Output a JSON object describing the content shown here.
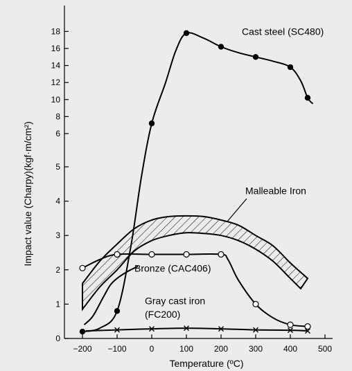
{
  "chart_data": {
    "type": "line",
    "xlabel": "Temperature (ºC)",
    "ylabel": "Impact value (Charpy)(kgf·m/cm²)",
    "xlim": [
      -230,
      500
    ],
    "x_ticks": [
      -200,
      -100,
      0,
      100,
      200,
      300,
      400,
      500
    ],
    "x_tick_labels": [
      "−200",
      "−100",
      "0",
      "100",
      "200",
      "300",
      "400",
      "500"
    ],
    "y_ticks": [
      0,
      1,
      2,
      3,
      4,
      5,
      6,
      8,
      10,
      12,
      14,
      16,
      18
    ],
    "y_scale": "piecewise: linear 0-5, compressed 6-18",
    "grid": false,
    "legend": "none (curves labeled directly)",
    "series": [
      {
        "name": "Cast steel (SC480)",
        "marker": "filled-circle",
        "points": [
          [
            -200,
            0.2
          ],
          [
            -100,
            0.8
          ],
          [
            0,
            7.2
          ],
          [
            100,
            17.8
          ],
          [
            200,
            16.2
          ],
          [
            300,
            15.0
          ],
          [
            400,
            13.8
          ],
          [
            450,
            10.2
          ]
        ],
        "curve": [
          [
            -200,
            0.2
          ],
          [
            -150,
            0.3
          ],
          [
            -100,
            0.8
          ],
          [
            -60,
            2.7
          ],
          [
            -30,
            4.7
          ],
          [
            0,
            7.2
          ],
          [
            40,
            12.0
          ],
          [
            70,
            15.8
          ],
          [
            100,
            17.8
          ],
          [
            150,
            17.2
          ],
          [
            200,
            16.2
          ],
          [
            250,
            15.5
          ],
          [
            300,
            15.0
          ],
          [
            350,
            14.5
          ],
          [
            400,
            13.8
          ],
          [
            430,
            12.2
          ],
          [
            450,
            10.2
          ],
          [
            465,
            9.5
          ]
        ]
      },
      {
        "name": "Malleable Iron",
        "marker": "none",
        "band_upper": [
          [
            -200,
            1.6
          ],
          [
            -150,
            2.25
          ],
          [
            -100,
            2.75
          ],
          [
            -50,
            3.2
          ],
          [
            0,
            3.45
          ],
          [
            50,
            3.55
          ],
          [
            100,
            3.57
          ],
          [
            150,
            3.55
          ],
          [
            200,
            3.45
          ],
          [
            250,
            3.3
          ],
          [
            300,
            3.0
          ],
          [
            350,
            2.7
          ],
          [
            400,
            2.2
          ],
          [
            450,
            1.75
          ]
        ],
        "band_lower": [
          [
            -200,
            0.85
          ],
          [
            -150,
            1.5
          ],
          [
            -100,
            2.0
          ],
          [
            -50,
            2.55
          ],
          [
            0,
            2.85
          ],
          [
            50,
            3.0
          ],
          [
            100,
            3.08
          ],
          [
            150,
            3.06
          ],
          [
            200,
            3.0
          ],
          [
            250,
            2.85
          ],
          [
            300,
            2.6
          ],
          [
            350,
            2.25
          ],
          [
            400,
            1.75
          ],
          [
            430,
            1.45
          ]
        ]
      },
      {
        "name": "Bronze (CAC406)",
        "marker": "open-circle",
        "points": [
          [
            -200,
            2.05
          ],
          [
            -100,
            2.45
          ],
          [
            0,
            2.45
          ],
          [
            100,
            2.45
          ],
          [
            200,
            2.45
          ],
          [
            300,
            1.0
          ],
          [
            400,
            0.4
          ],
          [
            450,
            0.35
          ]
        ],
        "curve": [
          [
            -200,
            2.05
          ],
          [
            -150,
            2.3
          ],
          [
            -100,
            2.45
          ],
          [
            0,
            2.45
          ],
          [
            100,
            2.45
          ],
          [
            200,
            2.45
          ],
          [
            220,
            2.3
          ],
          [
            250,
            1.7
          ],
          [
            300,
            1.0
          ],
          [
            350,
            0.6
          ],
          [
            400,
            0.4
          ],
          [
            450,
            0.35
          ]
        ]
      },
      {
        "name": "Gray cast iron (FC200)",
        "marker": "cross",
        "points": [
          [
            -100,
            0.25
          ],
          [
            0,
            0.28
          ],
          [
            100,
            0.3
          ],
          [
            200,
            0.28
          ],
          [
            300,
            0.25
          ],
          [
            400,
            0.24
          ],
          [
            450,
            0.22
          ]
        ],
        "curve": [
          [
            -190,
            0.22
          ],
          [
            -100,
            0.25
          ],
          [
            0,
            0.28
          ],
          [
            100,
            0.3
          ],
          [
            200,
            0.28
          ],
          [
            300,
            0.25
          ],
          [
            400,
            0.24
          ],
          [
            450,
            0.22
          ]
        ]
      },
      {
        "name": "",
        "marker": "none",
        "curve": [
          [
            -195,
            0.4
          ],
          [
            -170,
            0.65
          ],
          [
            -140,
            1.2
          ],
          [
            -120,
            1.55
          ],
          [
            -100,
            1.75
          ],
          [
            -70,
            1.95
          ],
          [
            -40,
            2.1
          ]
        ]
      }
    ],
    "labels": [
      {
        "text": "Cast steel (SC480)",
        "x": 260,
        "y": 17.6
      },
      {
        "text": "Malleable Iron",
        "x": 270,
        "y": 4.2
      },
      {
        "text": "Bronze (CAC406)",
        "x": -50,
        "y": 1.95
      },
      {
        "text": "Gray cast iron",
        "x": -20,
        "y": 1.0
      },
      {
        "text": "(FC200)",
        "x": -20,
        "y": 0.6
      }
    ]
  }
}
